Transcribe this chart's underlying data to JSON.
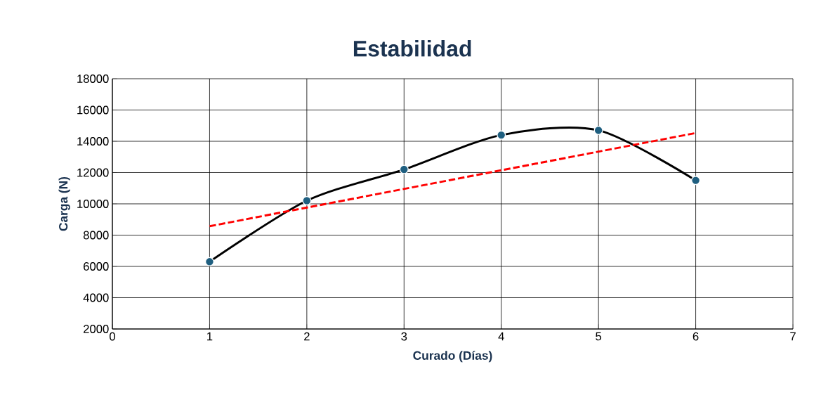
{
  "chart_data": {
    "type": "line",
    "title": "Estabilidad",
    "xlabel": "Curado (Días)",
    "ylabel": "Carga (N)",
    "x": [
      1,
      2,
      3,
      4,
      5,
      6
    ],
    "series": [
      {
        "color": "#000000",
        "values": [
          6300,
          10200,
          12200,
          14400,
          14700,
          11500
        ],
        "marker": "circle",
        "line_style": "solid"
      },
      {
        "type": "line",
        "x": [
          1,
          6
        ],
        "color": "#ff0000",
        "values": [
          8570,
          14530
        ],
        "marker": "none",
        "line_style": "dashed"
      }
    ],
    "xlim": [
      0,
      7
    ],
    "ylim": [
      2000,
      18000
    ],
    "xticks": [
      0,
      1,
      2,
      3,
      4,
      5,
      6,
      7
    ],
    "yticks": [
      2000,
      4000,
      6000,
      8000,
      10000,
      12000,
      14000,
      16000,
      18000
    ],
    "grid": true
  }
}
